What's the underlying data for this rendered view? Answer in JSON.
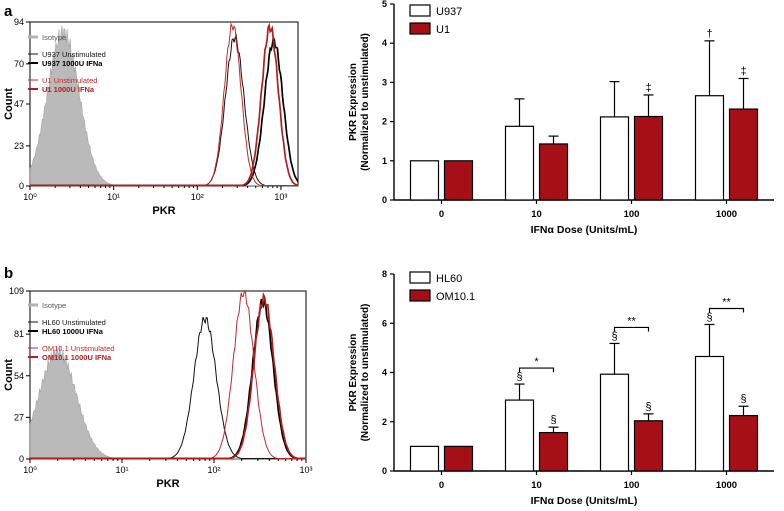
{
  "chart_data": [
    {
      "panel": "a",
      "type": "line",
      "subtype": "flow-cytometry-histogram",
      "xlabel": "PKR",
      "ylabel": "Count",
      "xscale": "log",
      "xlim": [
        1,
        1600
      ],
      "ylim": [
        0,
        94
      ],
      "x_ticks": [
        1,
        10,
        100,
        1000
      ],
      "x_tick_labels": [
        "10⁰",
        "10¹",
        "10²",
        "10³"
      ],
      "y_ticks": [
        0,
        23,
        47,
        70,
        94
      ],
      "y_tick_labels": [
        "0",
        "23",
        "47",
        "70",
        "94"
      ],
      "legend": [
        "Isotype",
        "U937 Unstimulated",
        "U937 1000U IFNa",
        "U1 Unstimulated",
        "U1 1000U IFNa"
      ],
      "series": [
        {
          "name": "Isotype",
          "color": "#b3b3b3",
          "fill": true,
          "peaks": [
            {
              "center": 2.5,
              "height": 88,
              "width": 0.19
            }
          ]
        },
        {
          "name": "U937 Unstimulated",
          "color": "#111111",
          "peaks": [
            {
              "center": 280,
              "height": 85,
              "width": 0.11
            }
          ]
        },
        {
          "name": "U937 1000U IFNa",
          "color": "#000000",
          "bold": true,
          "peaks": [
            {
              "center": 820,
              "height": 83,
              "width": 0.11
            }
          ]
        },
        {
          "name": "U1 Unstimulated",
          "color": "#c62828",
          "peaks": [
            {
              "center": 265,
              "height": 92,
              "width": 0.1
            }
          ]
        },
        {
          "name": "U1 1000U IFNa",
          "color": "#b71c1c",
          "bold": true,
          "peaks": [
            {
              "center": 740,
              "height": 91,
              "width": 0.1
            }
          ]
        }
      ]
    },
    {
      "panel": "a",
      "type": "bar",
      "categories": [
        "0",
        "10",
        "100",
        "1000"
      ],
      "xlabel": "IFNα Dose  (Units/mL)",
      "ylabel_line1": "PKR  Expression",
      "ylabel_line2": "(Normalized to unstimulated)",
      "ylim": [
        0,
        5
      ],
      "y_ticks": [
        0,
        1,
        2,
        3,
        4,
        5
      ],
      "series": [
        {
          "name": "U937",
          "color": "#ffffff",
          "values": [
            1.0,
            1.88,
            2.12,
            2.66
          ],
          "errors": [
            0,
            0.7,
            0.9,
            1.4
          ]
        },
        {
          "name": "U1",
          "color": "#a50f15",
          "values": [
            1.0,
            1.43,
            2.13,
            2.32
          ],
          "errors": [
            0,
            0.2,
            0.55,
            0.78
          ]
        }
      ],
      "annotations": [
        {
          "category": "100",
          "series": "U1",
          "text": "‡"
        },
        {
          "category": "1000",
          "series": "U937",
          "text": "†"
        },
        {
          "category": "1000",
          "series": "U1",
          "text": "‡"
        }
      ]
    },
    {
      "panel": "b",
      "type": "line",
      "subtype": "flow-cytometry-histogram",
      "xlabel": "PKR",
      "ylabel": "Count",
      "xscale": "log",
      "xlim": [
        1,
        1000
      ],
      "ylim": [
        0,
        109
      ],
      "x_ticks": [
        1,
        10,
        100,
        1000
      ],
      "x_tick_labels": [
        "10⁰",
        "10¹",
        "10²",
        "10³"
      ],
      "y_ticks": [
        0,
        27,
        54,
        81,
        109
      ],
      "y_tick_labels": [
        "0",
        "27",
        "54",
        "81",
        "109"
      ],
      "legend": [
        "Isotype",
        "HL60 Unstimulated",
        "HL60 1000U IFNa",
        "OM10.1 Unstimulated",
        "OM10.1 1000U IFNa"
      ],
      "series": [
        {
          "name": "Isotype",
          "color": "#b3b3b3",
          "fill": true,
          "peaks": [
            {
              "center": 2.0,
              "height": 70,
              "width": 0.2
            }
          ]
        },
        {
          "name": "HL60 Unstimulated",
          "color": "#111111",
          "peaks": [
            {
              "center": 80,
              "height": 91,
              "width": 0.12
            }
          ]
        },
        {
          "name": "HL60 1000U IFNa",
          "color": "#000000",
          "bold": true,
          "peaks": [
            {
              "center": 340,
              "height": 102,
              "width": 0.11
            }
          ]
        },
        {
          "name": "OM10.1 Unstimulated",
          "color": "#c62828",
          "peaks": [
            {
              "center": 210,
              "height": 108,
              "width": 0.11
            }
          ]
        },
        {
          "name": "OM10.1 1000U IFNa",
          "color": "#b71c1c",
          "bold": true,
          "peaks": [
            {
              "center": 350,
              "height": 104,
              "width": 0.11
            }
          ]
        }
      ]
    },
    {
      "panel": "b",
      "type": "bar",
      "categories": [
        "0",
        "10",
        "100",
        "1000"
      ],
      "xlabel": "IFNα Dose  (Units/mL)",
      "ylabel_line1": "PKR  Expression",
      "ylabel_line2": "(Normalized to unstimulated)",
      "ylim": [
        0,
        8
      ],
      "y_ticks": [
        0,
        2,
        4,
        6,
        8
      ],
      "series": [
        {
          "name": "HL60",
          "color": "#ffffff",
          "values": [
            1.0,
            2.88,
            3.93,
            4.65
          ],
          "errors": [
            0,
            0.65,
            1.25,
            1.3
          ]
        },
        {
          "name": "OM10.1",
          "color": "#a50f15",
          "values": [
            1.0,
            1.56,
            2.04,
            2.25
          ],
          "errors": [
            0,
            0.22,
            0.28,
            0.38
          ]
        }
      ],
      "annotations": [
        {
          "category": "10",
          "series": "HL60",
          "text": "§"
        },
        {
          "category": "10",
          "series": "OM10.1",
          "text": "§"
        },
        {
          "category": "100",
          "series": "HL60",
          "text": "§"
        },
        {
          "category": "100",
          "series": "OM10.1",
          "text": "§"
        },
        {
          "category": "1000",
          "series": "HL60",
          "text": "§"
        },
        {
          "category": "1000",
          "series": "OM10.1",
          "text": "§"
        }
      ],
      "significance": [
        {
          "category": "10",
          "text": "*"
        },
        {
          "category": "100",
          "text": "**"
        },
        {
          "category": "1000",
          "text": "**"
        }
      ]
    }
  ]
}
